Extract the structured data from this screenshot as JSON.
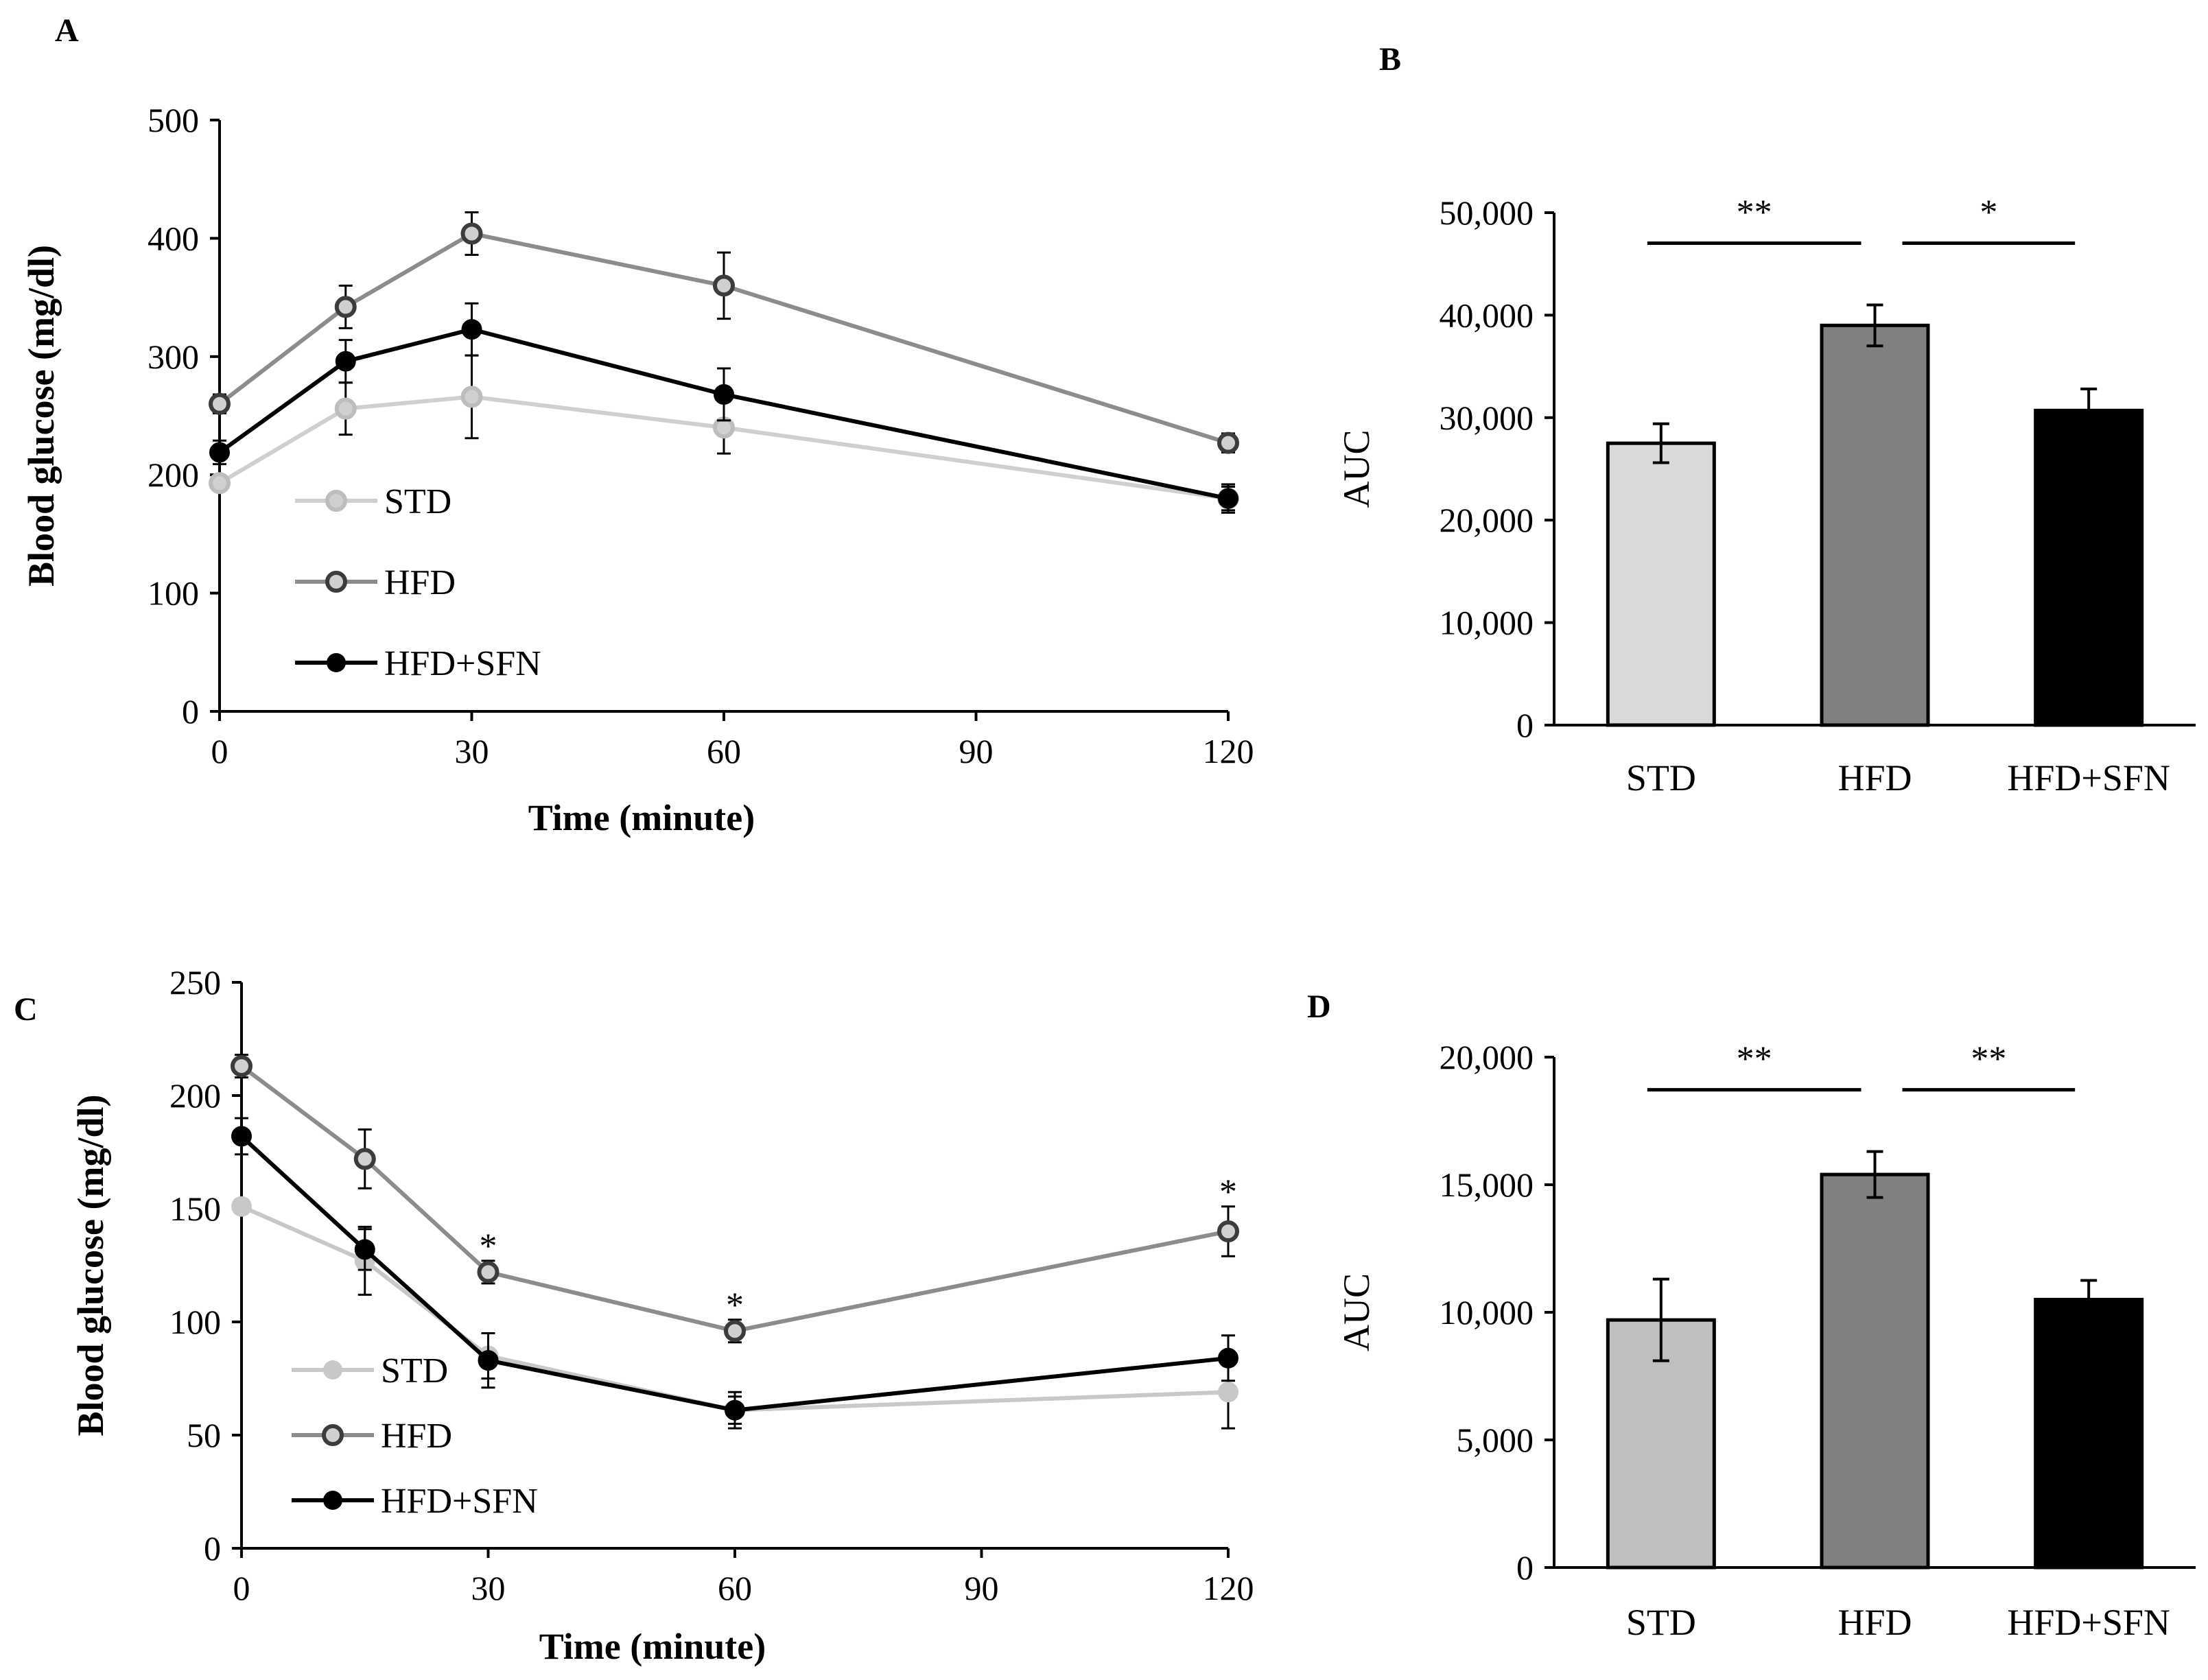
{
  "panels": {
    "A": {
      "letter": "A",
      "chart_data": {
        "type": "line",
        "title": "",
        "xlabel": "Time (minute)",
        "ylabel": "Blood glucose (mg/dl)",
        "xlim": [
          0,
          120
        ],
        "ylim": [
          0,
          500
        ],
        "xticks": [
          "0",
          "30",
          "60",
          "90",
          "120"
        ],
        "yticks": [
          "0",
          "100",
          "200",
          "300",
          "400",
          "500"
        ],
        "x": [
          0,
          15,
          30,
          60,
          120
        ],
        "series": [
          {
            "name": "STD",
            "values": [
              193,
              256,
              266,
              240,
              180
            ],
            "errors": [
              6,
              22,
              35,
              22,
              12
            ],
            "color": "#cfcfcf",
            "marker": "hollow"
          },
          {
            "name": "HFD",
            "values": [
              260,
              342,
              404,
              360,
              227
            ],
            "errors": [
              8,
              18,
              18,
              28,
              8
            ],
            "color": "#8c8c8c",
            "marker": "hollow"
          },
          {
            "name": "HFD+SFN",
            "values": [
              219,
              296,
              323,
              268,
              180
            ],
            "errors": [
              10,
              18,
              22,
              22,
              10
            ],
            "color": "#000000",
            "marker": "filled"
          }
        ],
        "legend": "lower-left",
        "annotations": []
      }
    },
    "B": {
      "letter": "B",
      "chart_data": {
        "type": "bar",
        "title": "",
        "xlabel": "",
        "ylabel": "AUC",
        "ylim": [
          0,
          50000
        ],
        "yticks": [
          "0",
          "10,000",
          "20,000",
          "30,000",
          "40,000",
          "50,000"
        ],
        "categories": [
          "STD",
          "HFD",
          "HFD+SFN"
        ],
        "values": [
          27500,
          39000,
          30700
        ],
        "errors": [
          1900,
          2000,
          2100
        ],
        "colors": [
          "#d9d9d9",
          "#808080",
          "#000000"
        ],
        "significance": [
          {
            "label": "**",
            "from": 0,
            "to": 1
          },
          {
            "label": "*",
            "from": 1,
            "to": 2
          }
        ]
      }
    },
    "C": {
      "letter": "C",
      "chart_data": {
        "type": "line",
        "title": "",
        "xlabel": "Time (minute)",
        "ylabel": "Blood glucose (mg/dl)",
        "xlim": [
          0,
          120
        ],
        "ylim": [
          0,
          250
        ],
        "xticks": [
          "0",
          "30",
          "60",
          "90",
          "120"
        ],
        "yticks": [
          "0",
          "50",
          "100",
          "150",
          "200",
          "250"
        ],
        "x": [
          0,
          15,
          30,
          60,
          120
        ],
        "series": [
          {
            "name": "STD",
            "values": [
              151,
              127,
              85,
              61,
              69
            ],
            "errors": [
              3,
              15,
              10,
              6,
              16
            ],
            "color": "#c8c8c8",
            "marker": "filled"
          },
          {
            "name": "HFD",
            "values": [
              213,
              172,
              122,
              96,
              140
            ],
            "errors": [
              5,
              13,
              5,
              5,
              11
            ],
            "color": "#8c8c8c",
            "marker": "hollow"
          },
          {
            "name": "HFD+SFN",
            "values": [
              182,
              132,
              83,
              61,
              84
            ],
            "errors": [
              8,
              9,
              12,
              8,
              10
            ],
            "color": "#000000",
            "marker": "filled"
          }
        ],
        "legend": "lower-left",
        "annotations": [
          {
            "text": "*",
            "x": 30,
            "y": 135
          },
          {
            "text": "*",
            "x": 60,
            "y": 109
          },
          {
            "text": "*",
            "x": 120,
            "y": 159
          }
        ]
      }
    },
    "D": {
      "letter": "D",
      "chart_data": {
        "type": "bar",
        "title": "",
        "xlabel": "",
        "ylabel": "AUC",
        "ylim": [
          0,
          20000
        ],
        "yticks": [
          "0",
          "5,000",
          "10,000",
          "15,000",
          "20,000"
        ],
        "categories": [
          "STD",
          "HFD",
          "HFD+SFN"
        ],
        "values": [
          9700,
          15400,
          10500
        ],
        "errors": [
          1600,
          900,
          750
        ],
        "colors": [
          "#bfbfbf",
          "#808080",
          "#000000"
        ],
        "significance": [
          {
            "label": "**",
            "from": 0,
            "to": 1
          },
          {
            "label": "**",
            "from": 1,
            "to": 2
          }
        ]
      }
    }
  }
}
